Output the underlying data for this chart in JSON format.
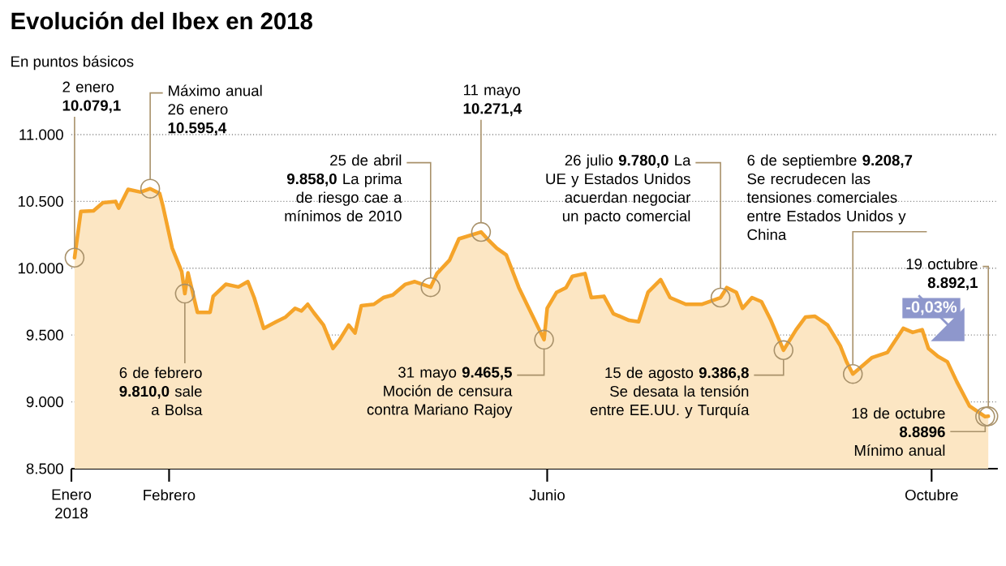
{
  "chart_data": {
    "type": "area",
    "title": "Evolución del Ibex en 2018",
    "subtitle": "En puntos básicos",
    "color": "#f5a42a",
    "x": [
      "2018-01-02",
      "2018-01-04",
      "2018-01-08",
      "2018-01-11",
      "2018-01-15",
      "2018-01-16",
      "2018-01-19",
      "2018-01-23",
      "2018-01-26",
      "2018-01-29",
      "2018-01-30",
      "2018-02-02",
      "2018-02-05",
      "2018-02-06",
      "2018-02-07",
      "2018-02-10",
      "2018-02-14",
      "2018-02-15",
      "2018-02-19",
      "2018-02-23",
      "2018-02-26",
      "2018-02-28",
      "2018-03-03",
      "2018-03-07",
      "2018-03-10",
      "2018-03-13",
      "2018-03-15",
      "2018-03-17",
      "2018-03-19",
      "2018-03-22",
      "2018-03-25",
      "2018-03-27",
      "2018-03-30",
      "2018-04-01",
      "2018-04-03",
      "2018-04-07",
      "2018-04-10",
      "2018-04-13",
      "2018-04-17",
      "2018-04-20",
      "2018-04-25",
      "2018-04-27",
      "2018-05-01",
      "2018-05-04",
      "2018-05-11",
      "2018-05-13",
      "2018-05-16",
      "2018-05-19",
      "2018-05-23",
      "2018-05-27",
      "2018-05-31",
      "2018-06-01",
      "2018-06-04",
      "2018-06-07",
      "2018-06-09",
      "2018-06-13",
      "2018-06-15",
      "2018-06-19",
      "2018-06-22",
      "2018-06-27",
      "2018-06-30",
      "2018-07-03",
      "2018-07-07",
      "2018-07-10",
      "2018-07-15",
      "2018-07-20",
      "2018-07-26",
      "2018-07-28",
      "2018-07-31",
      "2018-08-02",
      "2018-08-05",
      "2018-08-08",
      "2018-08-11",
      "2018-08-15",
      "2018-08-19",
      "2018-08-22",
      "2018-08-25",
      "2018-08-29",
      "2018-09-02",
      "2018-09-04",
      "2018-09-06",
      "2018-09-12",
      "2018-09-17",
      "2018-09-22",
      "2018-09-25",
      "2018-09-28",
      "2018-09-30",
      "2018-10-03",
      "2018-10-06",
      "2018-10-09",
      "2018-10-13",
      "2018-10-18",
      "2018-10-19"
    ],
    "values": [
      10079.1,
      10425,
      10430,
      10490,
      10500,
      10450,
      10590,
      10570,
      10595.4,
      10560,
      10470,
      10150,
      9975,
      9810,
      9965,
      9670,
      9670,
      9790,
      9880,
      9860,
      9900,
      9780,
      9550,
      9600,
      9635,
      9700,
      9680,
      9730,
      9665,
      9575,
      9400,
      9460,
      9575,
      9515,
      9720,
      9730,
      9780,
      9800,
      9880,
      9900,
      9858,
      9960,
      10060,
      10220,
      10271.4,
      10220,
      10150,
      10100,
      9855,
      9660,
      9465.5,
      9700,
      9820,
      9855,
      9940,
      9960,
      9780,
      9790,
      9660,
      9610,
      9600,
      9820,
      9915,
      9780,
      9730,
      9730,
      9780,
      9855,
      9820,
      9700,
      9780,
      9750,
      9610,
      9386.8,
      9540,
      9635,
      9640,
      9575,
      9420,
      9300,
      9208.7,
      9330,
      9370,
      9550,
      9520,
      9540,
      9400,
      9340,
      9300,
      9150,
      8970,
      8889.6,
      8892.1
    ],
    "xlim": [
      "2018-01-01",
      "2018-10-22"
    ],
    "xticks": [
      {
        "value": "2018-01-01",
        "label": "Enero 2018"
      },
      {
        "value": "2018-02-01",
        "label": "Febrero"
      },
      {
        "value": "2018-06-01",
        "label": "Junio"
      },
      {
        "value": "2018-10-01",
        "label": "Octubre"
      }
    ],
    "ylim": [
      8500,
      11000
    ],
    "yticks": [
      {
        "value": 8500,
        "label": "8.500"
      },
      {
        "value": 9000,
        "label": "9.000"
      },
      {
        "value": 9500,
        "label": "9.500"
      },
      {
        "value": 10000,
        "label": "10.000"
      },
      {
        "value": 10500,
        "label": "10.500"
      },
      {
        "value": 11000,
        "label": "11.000"
      }
    ],
    "grid": "y",
    "annotations": [
      {
        "text": "2 enero **10.079,1**",
        "x": "2018-01-02",
        "y": 10079.1
      },
      {
        "text": "Máximo anual 26 enero **10.595,4**",
        "x": "2018-01-26",
        "y": 10595.4
      },
      {
        "text": "6 de febrero **9.810,0** sale a Bolsa",
        "x": "2018-02-06",
        "y": 9810
      },
      {
        "text": "25 de abril **9.858,0** La prima de riesgo cae a mínimos de 2010",
        "x": "2018-04-25",
        "y": 9858
      },
      {
        "text": "11 mayo **10.271,4**",
        "x": "2018-05-11",
        "y": 10271.4
      },
      {
        "text": "31 mayo **9.465,5** Moción de censura contra Mariano Rajoy",
        "x": "2018-05-31",
        "y": 9465.5
      },
      {
        "text": "26 julio **9.780,0** La UE y Estados Unidos acuerdan negociar un pacto comercial",
        "x": "2018-07-26",
        "y": 9780
      },
      {
        "text": "15 de agosto **9.386,8** Se desata la tensión entre EE.UU. y Turquía",
        "x": "2018-08-15",
        "y": 9386.8
      },
      {
        "text": "6 de septiembre **9.208,7** Se recrudecen las tensiones comerciales entre Estados Unidos y China",
        "x": "2018-09-06",
        "y": 9208.7
      },
      {
        "text": "19 octubre **8.892,1**",
        "x": "2018-10-19",
        "y": 8892.1
      },
      {
        "text": "18 de octubre **8.8896** Mínimo anual",
        "x": "2018-10-18",
        "y": 8889.6
      },
      "-0,03%"
    ]
  }
}
